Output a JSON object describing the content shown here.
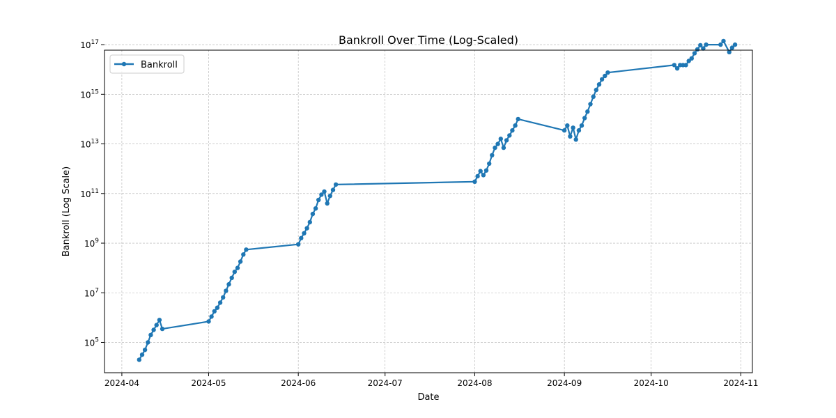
{
  "chart_data": {
    "type": "line",
    "title": "Bankroll Over Time (Log-Scaled)",
    "xlabel": "Date",
    "ylabel": "Bankroll (Log Scale)",
    "y_scale": "log",
    "xlim": [
      "2024-03-26",
      "2024-11-05"
    ],
    "ylim": [
      6000,
      60000000000000000
    ],
    "grid": true,
    "legend_position": "top-left",
    "x_ticks": [
      "2024-04",
      "2024-05",
      "2024-06",
      "2024-07",
      "2024-08",
      "2024-09",
      "2024-10",
      "2024-11"
    ],
    "y_ticks": [
      {
        "value": 100000,
        "base": "10",
        "exp": "5"
      },
      {
        "value": 10000000,
        "base": "10",
        "exp": "7"
      },
      {
        "value": 1000000000,
        "base": "10",
        "exp": "9"
      },
      {
        "value": 100000000000,
        "base": "10",
        "exp": "11"
      },
      {
        "value": 10000000000000,
        "base": "10",
        "exp": "13"
      },
      {
        "value": 1000000000000000,
        "base": "10",
        "exp": "15"
      },
      {
        "value": 100000000000000000,
        "base": "10",
        "exp": "17"
      }
    ],
    "series": [
      {
        "name": "Bankroll",
        "color": "#1f77b4",
        "marker": "circle",
        "x": [
          "2024-04-07",
          "2024-04-08",
          "2024-04-09",
          "2024-04-10",
          "2024-04-11",
          "2024-04-12",
          "2024-04-13",
          "2024-04-14",
          "2024-04-15",
          "2024-05-01",
          "2024-05-02",
          "2024-05-03",
          "2024-05-04",
          "2024-05-05",
          "2024-05-06",
          "2024-05-07",
          "2024-05-08",
          "2024-05-09",
          "2024-05-10",
          "2024-05-11",
          "2024-05-12",
          "2024-05-13",
          "2024-05-14",
          "2024-06-01",
          "2024-06-02",
          "2024-06-03",
          "2024-06-04",
          "2024-06-05",
          "2024-06-06",
          "2024-06-07",
          "2024-06-08",
          "2024-06-09",
          "2024-06-10",
          "2024-06-11",
          "2024-06-12",
          "2024-06-13",
          "2024-06-14",
          "2024-08-01",
          "2024-08-02",
          "2024-08-03",
          "2024-08-04",
          "2024-08-05",
          "2024-08-06",
          "2024-08-07",
          "2024-08-08",
          "2024-08-09",
          "2024-08-10",
          "2024-08-11",
          "2024-08-12",
          "2024-08-13",
          "2024-08-14",
          "2024-08-15",
          "2024-08-16",
          "2024-09-01",
          "2024-09-02",
          "2024-09-03",
          "2024-09-04",
          "2024-09-05",
          "2024-09-06",
          "2024-09-07",
          "2024-09-08",
          "2024-09-09",
          "2024-09-10",
          "2024-09-11",
          "2024-09-12",
          "2024-09-13",
          "2024-09-14",
          "2024-09-15",
          "2024-09-16",
          "2024-10-09",
          "2024-10-10",
          "2024-10-11",
          "2024-10-12",
          "2024-10-13",
          "2024-10-14",
          "2024-10-15",
          "2024-10-16",
          "2024-10-17",
          "2024-10-18",
          "2024-10-19",
          "2024-10-20",
          "2024-10-25",
          "2024-10-26",
          "2024-10-28",
          "2024-10-29",
          "2024-10-30"
        ],
        "y": [
          20000,
          32000,
          50000,
          100000,
          200000,
          320000,
          500000,
          800000,
          350000,
          700000,
          1100000,
          1800000,
          2500000,
          4000000,
          6500000,
          12000000,
          22000000,
          40000000,
          70000000,
          100000000,
          180000000,
          350000000,
          550000000,
          900000000,
          1600000000,
          2500000000,
          4000000000,
          7000000000,
          15000000000,
          25000000000,
          55000000000,
          90000000000,
          120000000000,
          40000000000,
          80000000000,
          140000000000,
          230000000000,
          300000000000,
          500000000000,
          800000000000,
          550000000000,
          850000000000,
          1600000000000,
          3500000000000,
          7000000000000,
          10000000000000,
          16000000000000,
          7000000000000,
          14000000000000,
          22000000000000,
          35000000000000,
          55000000000000,
          100000000000000,
          35000000000000,
          55000000000000,
          20000000000000,
          45000000000000,
          15000000000000,
          35000000000000,
          55000000000000,
          110000000000000,
          200000000000000,
          400000000000000,
          800000000000000,
          1500000000000000,
          2500000000000000,
          4000000000000000,
          5500000000000000,
          7500000000000000,
          15000000000000000,
          11000000000000000,
          15000000000000000,
          15000000000000000,
          15000000000000000,
          22000000000000000,
          28000000000000000,
          45000000000000000,
          65000000000000000,
          95000000000000000,
          70000000000000000,
          100000000000000000,
          100000000000000000,
          140000000000000000,
          50000000000000000,
          75000000000000000,
          100000000000000000
        ]
      }
    ]
  }
}
